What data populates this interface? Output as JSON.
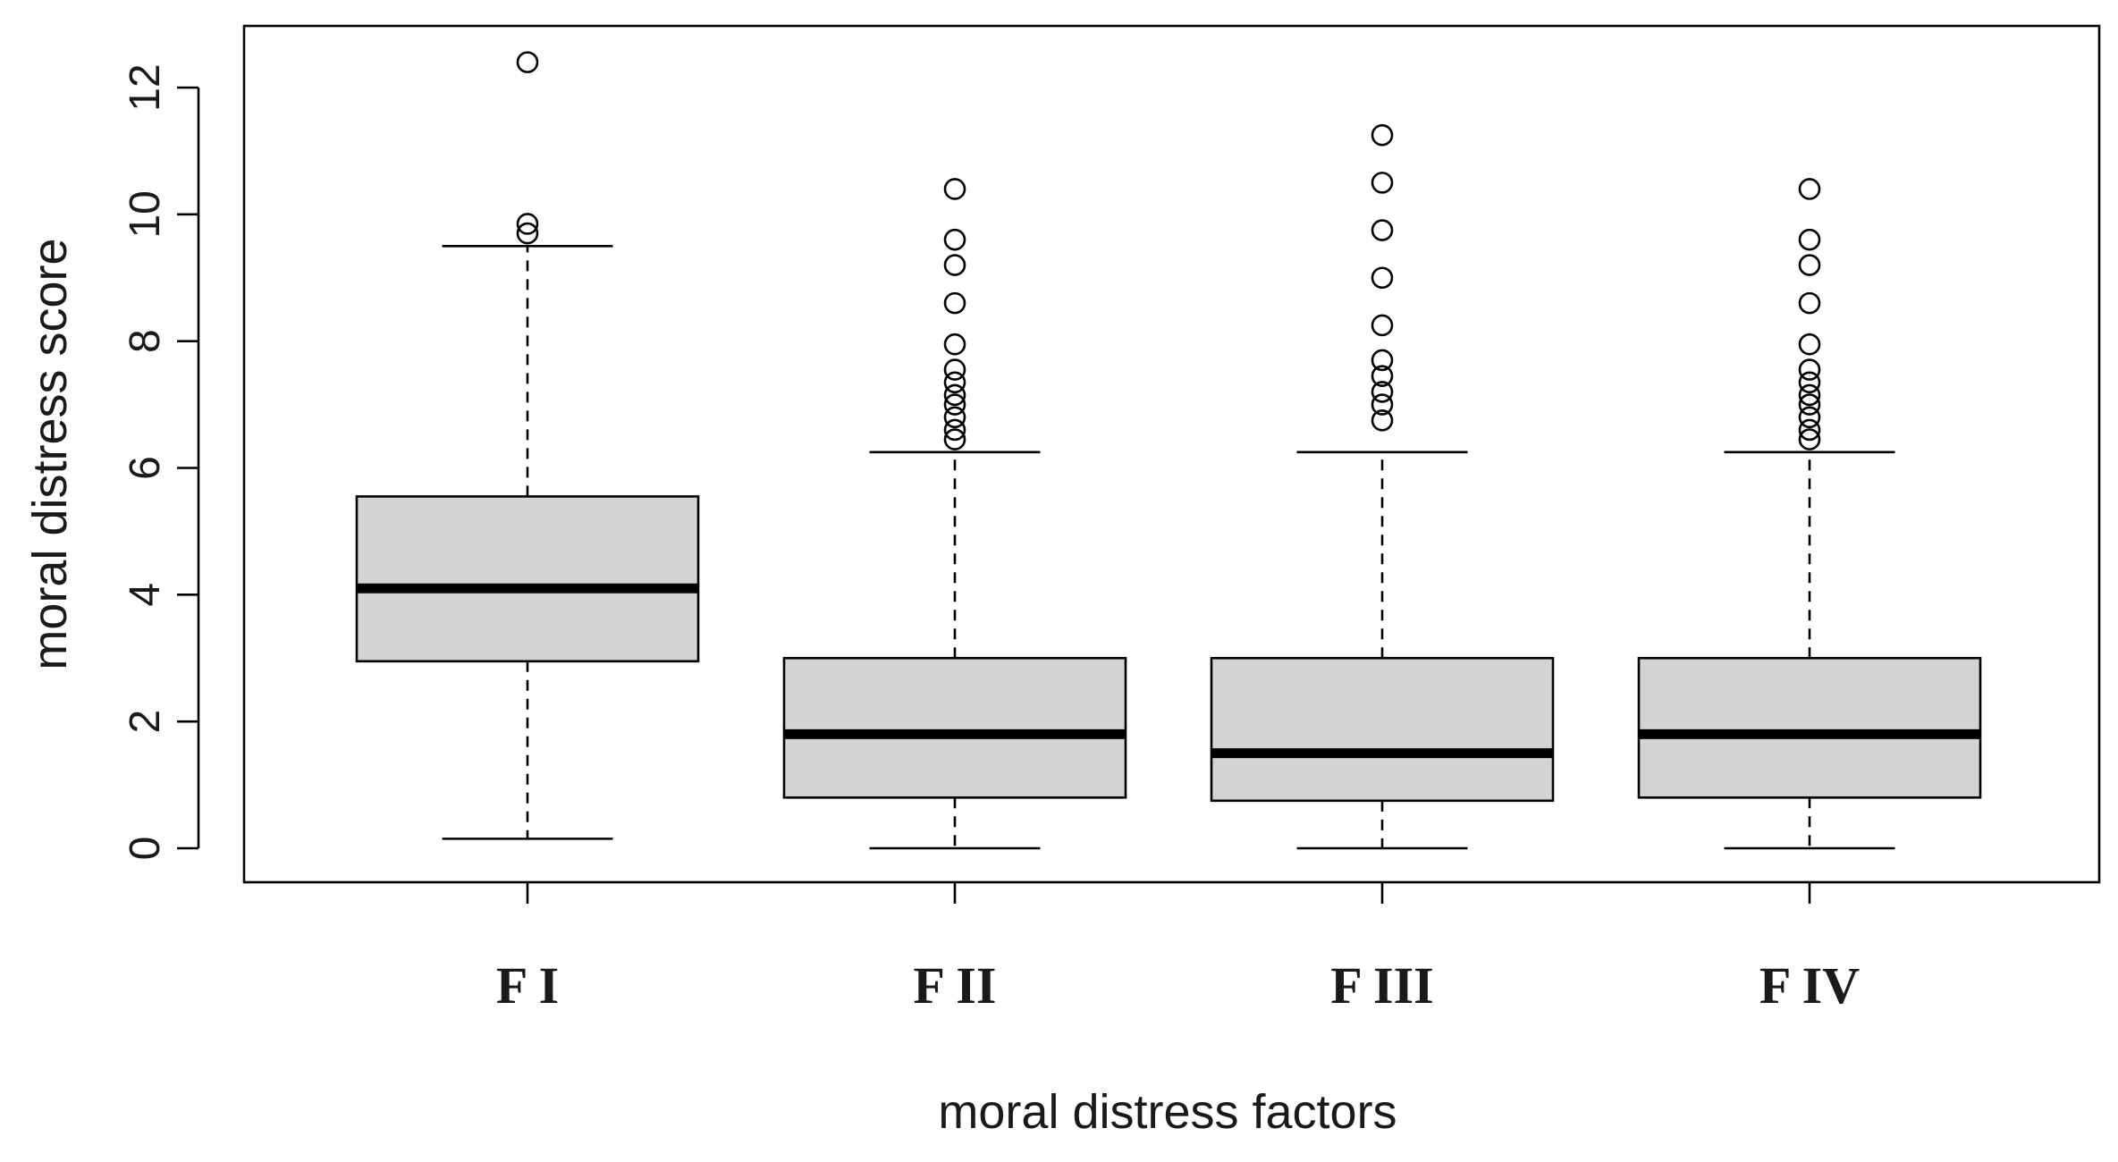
{
  "chart_data": {
    "type": "boxplot",
    "xlabel": "moral distress factors",
    "ylabel": "moral distress score",
    "ylim": [
      -0.55,
      13.0
    ],
    "yticks": [
      0,
      2,
      4,
      6,
      8,
      10,
      12
    ],
    "grid": false,
    "colors": {
      "box_fill": "#d3d3d3",
      "stroke": "#000000",
      "background": "#ffffff"
    },
    "categories": [
      "F I",
      "F II",
      "F III",
      "F IV"
    ],
    "boxes": [
      {
        "label": "F I",
        "whisker_low": 0.15,
        "q1": 2.95,
        "median": 4.1,
        "q3": 5.55,
        "whisker_high": 9.5,
        "outliers": [
          9.7,
          9.85,
          12.4
        ]
      },
      {
        "label": "F II",
        "whisker_low": 0.0,
        "q1": 0.8,
        "median": 1.8,
        "q3": 3.0,
        "whisker_high": 6.25,
        "outliers": [
          6.45,
          6.6,
          6.8,
          7.0,
          7.15,
          7.35,
          7.55,
          7.95,
          8.6,
          9.2,
          9.6,
          10.4
        ]
      },
      {
        "label": "F III",
        "whisker_low": 0.0,
        "q1": 0.75,
        "median": 1.5,
        "q3": 3.0,
        "whisker_high": 6.25,
        "outliers": [
          6.75,
          7.0,
          7.2,
          7.45,
          7.7,
          8.25,
          9.0,
          9.75,
          10.5,
          11.25
        ]
      },
      {
        "label": "F IV",
        "whisker_low": 0.0,
        "q1": 0.8,
        "median": 1.8,
        "q3": 3.0,
        "whisker_high": 6.25,
        "outliers": [
          6.45,
          6.6,
          6.8,
          7.0,
          7.15,
          7.35,
          7.55,
          7.95,
          8.6,
          9.2,
          9.6,
          10.4
        ]
      }
    ]
  }
}
